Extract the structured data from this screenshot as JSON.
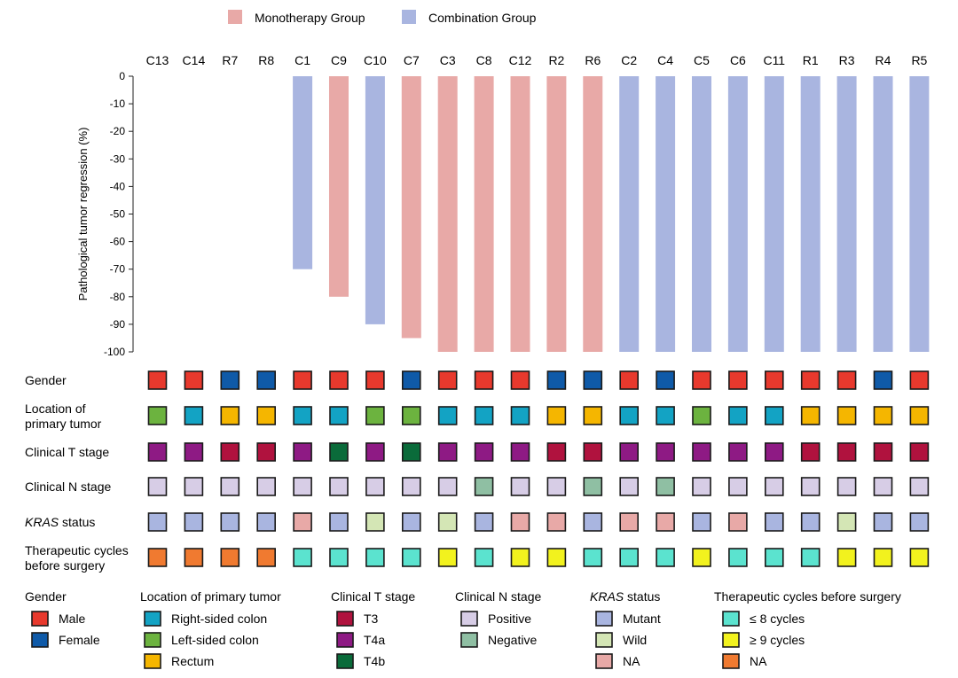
{
  "chart_data": {
    "type": "bar",
    "categories": [
      "C13",
      "C14",
      "R7",
      "R8",
      "C1",
      "C9",
      "C10",
      "C7",
      "C3",
      "C8",
      "C12",
      "R2",
      "R6",
      "C2",
      "C4",
      "C5",
      "C6",
      "C11",
      "R1",
      "R3",
      "R4",
      "R5"
    ],
    "series": [
      {
        "name": "Monotherapy Group",
        "color": "#e8a9a7"
      },
      {
        "name": "Combination Group",
        "color": "#a9b5e0"
      }
    ],
    "group": [
      "",
      "",
      "",
      "",
      "Combination Group",
      "Monotherapy Group",
      "Combination Group",
      "Monotherapy Group",
      "Monotherapy Group",
      "Monotherapy Group",
      "Monotherapy Group",
      "Monotherapy Group",
      "Monotherapy Group",
      "Combination Group",
      "Combination Group",
      "Combination Group",
      "Combination Group",
      "Combination Group",
      "Combination Group",
      "Combination Group",
      "Combination Group",
      "Combination Group"
    ],
    "values": [
      0,
      0,
      0,
      0,
      -70,
      -80,
      -90,
      -95,
      -100,
      -100,
      -100,
      -100,
      -100,
      -100,
      -100,
      -100,
      -100,
      -100,
      -100,
      -100,
      -100,
      -100
    ],
    "ylabel": "Pathological tumor regression (%)",
    "ylim": [
      -100,
      0
    ],
    "yticks": [
      "0",
      "-10",
      "-20",
      "-30",
      "-40",
      "-50",
      "-60",
      "-70",
      "-80",
      "-90",
      "-100"
    ],
    "legend_position": "top-left",
    "grid": false
  },
  "tracks": [
    {
      "label_lines": [
        "Gender"
      ],
      "italic": false,
      "values": [
        "M",
        "M",
        "F",
        "F",
        "M",
        "M",
        "M",
        "F",
        "M",
        "M",
        "M",
        "F",
        "F",
        "M",
        "F",
        "M",
        "M",
        "M",
        "M",
        "M",
        "F",
        "M"
      ]
    },
    {
      "label_lines": [
        "Location of",
        "primary tumor"
      ],
      "italic": false,
      "values": [
        "L",
        "R",
        "Re",
        "Re",
        "R",
        "R",
        "L",
        "L",
        "R",
        "R",
        "R",
        "Re",
        "Re",
        "R",
        "R",
        "L",
        "R",
        "R",
        "Re",
        "Re",
        "Re",
        "Re"
      ]
    },
    {
      "label_lines": [
        "Clinical T stage"
      ],
      "italic": false,
      "values": [
        "T4a",
        "T4a",
        "T3",
        "T3",
        "T4a",
        "T4b",
        "T4a",
        "T4b",
        "T4a",
        "T4a",
        "T4a",
        "T3",
        "T3",
        "T4a",
        "T4a",
        "T4a",
        "T4a",
        "T4a",
        "T3",
        "T3",
        "T3",
        "T3"
      ]
    },
    {
      "label_lines": [
        "Clinical N stage"
      ],
      "italic": false,
      "values": [
        "P",
        "P",
        "P",
        "P",
        "P",
        "P",
        "P",
        "P",
        "P",
        "N",
        "P",
        "P",
        "N",
        "P",
        "N",
        "P",
        "P",
        "P",
        "P",
        "P",
        "P",
        "P"
      ]
    },
    {
      "label_lines": [
        "KRAS",
        " status"
      ],
      "italic": true,
      "values": [
        "Mu",
        "Mu",
        "Mu",
        "Mu",
        "NA",
        "Mu",
        "W",
        "Mu",
        "W",
        "Mu",
        "NA",
        "NA",
        "Mu",
        "NA",
        "NA",
        "Mu",
        "NA",
        "Mu",
        "Mu",
        "W",
        "Mu",
        "Mu"
      ]
    },
    {
      "label_lines": [
        "Therapeutic cycles",
        "before surgery"
      ],
      "italic": false,
      "values": [
        "NA",
        "NA",
        "NA",
        "NA",
        "L8",
        "L8",
        "L8",
        "L8",
        "G9",
        "L8",
        "G9",
        "G9",
        "L8",
        "L8",
        "L8",
        "G9",
        "L8",
        "L8",
        "L8",
        "G9",
        "G9",
        "G9"
      ]
    }
  ],
  "codes": {
    "M": {
      "color": "#e8392d"
    },
    "F": {
      "color": "#0f5aa8"
    },
    "R": {
      "color": "#13a3c4"
    },
    "L": {
      "color": "#6cb33f"
    },
    "Re": {
      "color": "#f5b600"
    },
    "T3": {
      "color": "#b0123e"
    },
    "T4a": {
      "color": "#8e1a84"
    },
    "T4b": {
      "color": "#0a6b3a"
    },
    "P": {
      "color": "#d7cde6"
    },
    "N": {
      "color": "#8fbfa3"
    },
    "Mu": {
      "color": "#a9b5e0"
    },
    "W": {
      "color": "#d4e6b5"
    },
    "NA": {
      "color": "#e8a9a7"
    },
    "L8": {
      "color": "#5be3cf"
    },
    "G9": {
      "color": "#f2f21e"
    },
    "NA2": {
      "color": "#f07a30"
    }
  },
  "legend_groups": [
    {
      "title": "Gender",
      "italic_title": false,
      "items": [
        {
          "label": "Male",
          "color": "#e8392d"
        },
        {
          "label": "Female",
          "color": "#0f5aa8"
        }
      ]
    },
    {
      "title": "Location of primary tumor",
      "italic_title": false,
      "items": [
        {
          "label": "Right-sided colon",
          "color": "#13a3c4"
        },
        {
          "label": "Left-sided colon",
          "color": "#6cb33f"
        },
        {
          "label": "Rectum",
          "color": "#f5b600"
        }
      ]
    },
    {
      "title": "Clinical T stage",
      "italic_title": false,
      "items": [
        {
          "label": "T3",
          "color": "#b0123e"
        },
        {
          "label": "T4a",
          "color": "#8e1a84"
        },
        {
          "label": "T4b",
          "color": "#0a6b3a"
        }
      ]
    },
    {
      "title": "Clinical N stage",
      "italic_title": false,
      "items": [
        {
          "label": "Positive",
          "color": "#d7cde6"
        },
        {
          "label": "Negative",
          "color": "#8fbfa3"
        }
      ]
    },
    {
      "title": "KRAS status",
      "italic_title": true,
      "title_main": "KRAS",
      "title_rest": " status",
      "items": [
        {
          "label": "Mutant",
          "color": "#a9b5e0"
        },
        {
          "label": "Wild",
          "color": "#d4e6b5"
        },
        {
          "label": "NA",
          "color": "#e8a9a7"
        }
      ]
    },
    {
      "title": "Therapeutic cycles before surgery",
      "italic_title": false,
      "items": [
        {
          "label": "≤ 8 cycles",
          "color": "#5be3cf"
        },
        {
          "label": "≥ 9 cycles",
          "color": "#f2f21e"
        },
        {
          "label": "NA",
          "color": "#f07a30"
        }
      ]
    }
  ]
}
